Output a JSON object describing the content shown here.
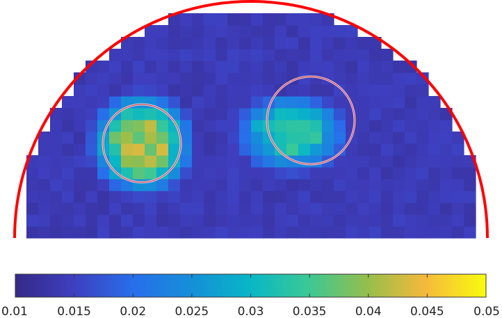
{
  "chart_data": {
    "type": "heatmap",
    "title": "",
    "xlabel": "",
    "ylabel": "",
    "grid": false,
    "colormap": "parula",
    "colorbar": {
      "orientation": "horizontal",
      "placement": "bottom",
      "range": [
        0.01,
        0.05
      ],
      "tick_values": [
        0.01,
        0.015,
        0.02,
        0.025,
        0.03,
        0.035,
        0.04,
        0.045,
        0.05
      ],
      "tick_labels": [
        "0.01",
        "0.015",
        "0.02",
        "0.025",
        "0.03",
        "0.035",
        "0.04",
        "0.045",
        "0.05"
      ]
    },
    "domain_shape": "half-disk",
    "domain_outline_color": "#ff0000",
    "background_value": 0.014,
    "inclusions": [
      {
        "name": "left inclusion",
        "outline_color": "#ffd0d8",
        "peak_value": 0.04
      },
      {
        "name": "right inclusion",
        "outline_color": "#ffd0d8",
        "peak_value": 0.032
      }
    ]
  }
}
